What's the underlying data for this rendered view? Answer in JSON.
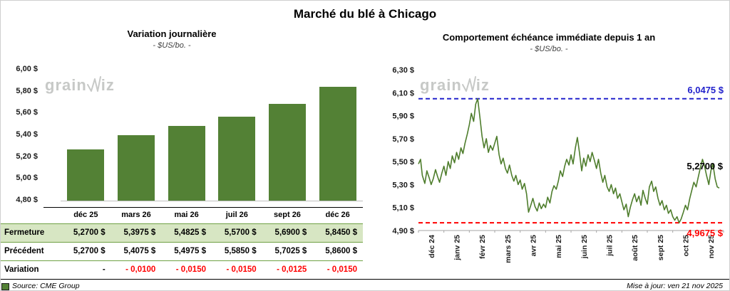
{
  "page": {
    "title": "Marché du blé à Chicago",
    "source": "Source: CME Group",
    "updated": "Mise à jour: ven 21 nov 2025",
    "watermark_prefix": "grain",
    "watermark_suffix": "iz"
  },
  "colors": {
    "bar_green": "#538135",
    "line_green": "#4e7d2c",
    "table_fill_green": "#d7e6c3",
    "table_border_green": "#6fa144",
    "high_blue": "#2222cc",
    "low_red": "#ff0000",
    "axis_gray": "#a6a6a6",
    "watermark_gray": "#c7c9c7"
  },
  "chart_data": [
    {
      "type": "bar",
      "title": "Variation journalière",
      "subtitle": "- $US/bo. -",
      "categories": [
        "déc 25",
        "mars 26",
        "mai 26",
        "juil 26",
        "sept 26",
        "déc 26"
      ],
      "values": [
        5.27,
        5.3975,
        5.4825,
        5.57,
        5.69,
        5.845
      ],
      "ylim": [
        4.8,
        6.0
      ],
      "yticks": [
        "6,00 $",
        "5,80 $",
        "5,60 $",
        "5,40 $",
        "5,20 $",
        "5,00 $",
        "4,80 $"
      ],
      "grid": false,
      "legend": false
    },
    {
      "type": "line",
      "title": "Comportement échéance immédiate depuis 1 an",
      "subtitle": "- $US/bo. -",
      "x_labels": [
        "déc 24",
        "janv 25",
        "févr 25",
        "mars 25",
        "avr 25",
        "mai 25",
        "juin 25",
        "juil 25",
        "août 25",
        "sept 25",
        "oct 25",
        "nov 25"
      ],
      "ylim": [
        4.9,
        6.3
      ],
      "yticks": [
        "6,30 $",
        "6,10 $",
        "5,90 $",
        "5,70 $",
        "5,50 $",
        "5,30 $",
        "5,10 $",
        "4,90 $"
      ],
      "high_line": {
        "value": 6.0475,
        "label": "6,0475 $"
      },
      "low_line": {
        "value": 4.9675,
        "label": "4,9675 $"
      },
      "last_value": {
        "value": 5.27,
        "label": "5,2700 $"
      },
      "grid": false,
      "legend": false,
      "points": [
        [
          0,
          5.48
        ],
        [
          0.08,
          5.52
        ],
        [
          0.15,
          5.38
        ],
        [
          0.25,
          5.31
        ],
        [
          0.33,
          5.42
        ],
        [
          0.42,
          5.36
        ],
        [
          0.5,
          5.3
        ],
        [
          0.58,
          5.35
        ],
        [
          0.67,
          5.43
        ],
        [
          0.75,
          5.37
        ],
        [
          0.83,
          5.32
        ],
        [
          0.92,
          5.4
        ],
        [
          1,
          5.46
        ],
        [
          1.08,
          5.38
        ],
        [
          1.17,
          5.5
        ],
        [
          1.25,
          5.44
        ],
        [
          1.33,
          5.55
        ],
        [
          1.42,
          5.49
        ],
        [
          1.5,
          5.58
        ],
        [
          1.58,
          5.52
        ],
        [
          1.67,
          5.62
        ],
        [
          1.75,
          5.57
        ],
        [
          1.83,
          5.66
        ],
        [
          1.92,
          5.74
        ],
        [
          2,
          5.82
        ],
        [
          2.08,
          5.92
        ],
        [
          2.17,
          5.85
        ],
        [
          2.25,
          6.0
        ],
        [
          2.33,
          6.0475
        ],
        [
          2.42,
          5.88
        ],
        [
          2.5,
          5.72
        ],
        [
          2.58,
          5.62
        ],
        [
          2.67,
          5.7
        ],
        [
          2.75,
          5.58
        ],
        [
          2.83,
          5.64
        ],
        [
          2.92,
          5.6
        ],
        [
          3,
          5.66
        ],
        [
          3.08,
          5.72
        ],
        [
          3.17,
          5.56
        ],
        [
          3.25,
          5.48
        ],
        [
          3.33,
          5.53
        ],
        [
          3.42,
          5.44
        ],
        [
          3.5,
          5.4
        ],
        [
          3.58,
          5.47
        ],
        [
          3.67,
          5.38
        ],
        [
          3.75,
          5.33
        ],
        [
          3.83,
          5.38
        ],
        [
          3.92,
          5.3
        ],
        [
          4,
          5.34
        ],
        [
          4.08,
          5.26
        ],
        [
          4.17,
          5.31
        ],
        [
          4.25,
          5.22
        ],
        [
          4.33,
          5.06
        ],
        [
          4.42,
          5.12
        ],
        [
          4.5,
          5.18
        ],
        [
          4.58,
          5.11
        ],
        [
          4.67,
          5.07
        ],
        [
          4.75,
          5.14
        ],
        [
          4.83,
          5.09
        ],
        [
          4.92,
          5.13
        ],
        [
          5,
          5.1
        ],
        [
          5.08,
          5.19
        ],
        [
          5.17,
          5.14
        ],
        [
          5.25,
          5.24
        ],
        [
          5.33,
          5.29
        ],
        [
          5.42,
          5.26
        ],
        [
          5.5,
          5.33
        ],
        [
          5.58,
          5.42
        ],
        [
          5.67,
          5.37
        ],
        [
          5.75,
          5.46
        ],
        [
          5.83,
          5.52
        ],
        [
          5.92,
          5.47
        ],
        [
          6,
          5.56
        ],
        [
          6.08,
          5.48
        ],
        [
          6.17,
          5.62
        ],
        [
          6.25,
          5.71
        ],
        [
          6.33,
          5.58
        ],
        [
          6.42,
          5.42
        ],
        [
          6.5,
          5.53
        ],
        [
          6.58,
          5.46
        ],
        [
          6.67,
          5.56
        ],
        [
          6.75,
          5.5
        ],
        [
          6.83,
          5.58
        ],
        [
          6.92,
          5.51
        ],
        [
          7,
          5.44
        ],
        [
          7.08,
          5.52
        ],
        [
          7.17,
          5.4
        ],
        [
          7.25,
          5.32
        ],
        [
          7.33,
          5.38
        ],
        [
          7.42,
          5.28
        ],
        [
          7.5,
          5.24
        ],
        [
          7.58,
          5.3
        ],
        [
          7.67,
          5.22
        ],
        [
          7.75,
          5.27
        ],
        [
          7.83,
          5.18
        ],
        [
          7.92,
          5.22
        ],
        [
          8,
          5.15
        ],
        [
          8.08,
          5.08
        ],
        [
          8.17,
          5.13
        ],
        [
          8.25,
          5.02
        ],
        [
          8.33,
          5.1
        ],
        [
          8.42,
          5.17
        ],
        [
          8.5,
          5.22
        ],
        [
          8.58,
          5.15
        ],
        [
          8.67,
          5.2
        ],
        [
          8.75,
          5.12
        ],
        [
          8.83,
          5.25
        ],
        [
          8.92,
          5.18
        ],
        [
          9,
          5.13
        ],
        [
          9.08,
          5.28
        ],
        [
          9.17,
          5.33
        ],
        [
          9.25,
          5.24
        ],
        [
          9.33,
          5.28
        ],
        [
          9.42,
          5.18
        ],
        [
          9.5,
          5.12
        ],
        [
          9.58,
          5.16
        ],
        [
          9.67,
          5.08
        ],
        [
          9.75,
          5.12
        ],
        [
          9.83,
          5.05
        ],
        [
          9.92,
          5.08
        ],
        [
          10,
          5.02
        ],
        [
          10.08,
          4.99
        ],
        [
          10.17,
          5.02
        ],
        [
          10.25,
          4.9675
        ],
        [
          10.33,
          5.0
        ],
        [
          10.42,
          5.06
        ],
        [
          10.5,
          5.12
        ],
        [
          10.58,
          5.08
        ],
        [
          10.67,
          5.18
        ],
        [
          10.75,
          5.25
        ],
        [
          10.83,
          5.32
        ],
        [
          10.92,
          5.28
        ],
        [
          11,
          5.36
        ],
        [
          11.08,
          5.44
        ],
        [
          11.17,
          5.52
        ],
        [
          11.25,
          5.46
        ],
        [
          11.33,
          5.38
        ],
        [
          11.42,
          5.3
        ],
        [
          11.5,
          5.42
        ],
        [
          11.58,
          5.48
        ],
        [
          11.67,
          5.35
        ],
        [
          11.75,
          5.28
        ],
        [
          11.83,
          5.27
        ]
      ]
    }
  ],
  "table": {
    "rows": [
      {
        "label": "Fermeture",
        "values": [
          "5,2700 $",
          "5,3975 $",
          "5,4825 $",
          "5,5700 $",
          "5,6900 $",
          "5,8450 $"
        ]
      },
      {
        "label": "Précédent",
        "values": [
          "5,2700 $",
          "5,4075 $",
          "5,4975 $",
          "5,5850 $",
          "5,7025 $",
          "5,8600 $"
        ]
      },
      {
        "label": "Variation",
        "values": [
          "-",
          "- 0,0100",
          "- 0,0150",
          "- 0,0150",
          "- 0,0125",
          "- 0,0150"
        ]
      }
    ]
  }
}
